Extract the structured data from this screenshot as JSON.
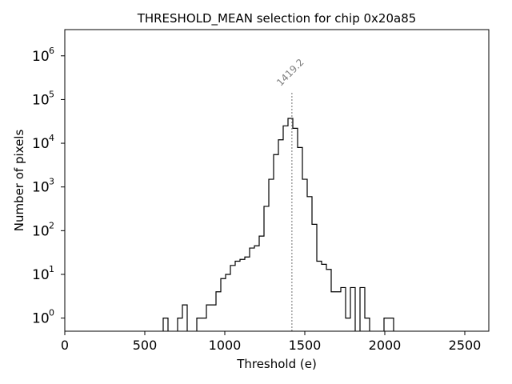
{
  "chart_data": {
    "type": "histogram",
    "title": "THRESHOLD_MEAN selection for chip 0x20a85",
    "xlabel": "Threshold (e)",
    "ylabel": "Number of pixels",
    "xlim": [
      0,
      2650
    ],
    "ylim_log10": [
      -0.3,
      6.6
    ],
    "yscale": "log",
    "x_ticks": [
      0,
      500,
      1000,
      1500,
      2000,
      2500
    ],
    "x_tick_labels": [
      "0",
      "500",
      "1000",
      "1500",
      "2000",
      "2500"
    ],
    "y_tick_exponents": [
      0,
      1,
      2,
      3,
      4,
      5,
      6
    ],
    "y_tick_base": "10",
    "bin_width": 30,
    "bins": [
      {
        "x0": 615,
        "count": 1
      },
      {
        "x0": 705,
        "count": 1
      },
      {
        "x0": 735,
        "count": 2
      },
      {
        "x0": 825,
        "count": 1
      },
      {
        "x0": 855,
        "count": 1
      },
      {
        "x0": 885,
        "count": 2
      },
      {
        "x0": 915,
        "count": 2
      },
      {
        "x0": 945,
        "count": 4
      },
      {
        "x0": 975,
        "count": 8
      },
      {
        "x0": 1005,
        "count": 10
      },
      {
        "x0": 1035,
        "count": 16
      },
      {
        "x0": 1065,
        "count": 20
      },
      {
        "x0": 1095,
        "count": 22
      },
      {
        "x0": 1125,
        "count": 25
      },
      {
        "x0": 1155,
        "count": 40
      },
      {
        "x0": 1185,
        "count": 45
      },
      {
        "x0": 1215,
        "count": 75
      },
      {
        "x0": 1245,
        "count": 360
      },
      {
        "x0": 1275,
        "count": 1500
      },
      {
        "x0": 1305,
        "count": 5500
      },
      {
        "x0": 1335,
        "count": 12000
      },
      {
        "x0": 1365,
        "count": 25000
      },
      {
        "x0": 1395,
        "count": 37000
      },
      {
        "x0": 1425,
        "count": 22000
      },
      {
        "x0": 1455,
        "count": 8000
      },
      {
        "x0": 1485,
        "count": 1500
      },
      {
        "x0": 1515,
        "count": 600
      },
      {
        "x0": 1545,
        "count": 140
      },
      {
        "x0": 1575,
        "count": 20
      },
      {
        "x0": 1605,
        "count": 17
      },
      {
        "x0": 1635,
        "count": 13
      },
      {
        "x0": 1665,
        "count": 4
      },
      {
        "x0": 1695,
        "count": 4
      },
      {
        "x0": 1725,
        "count": 5
      },
      {
        "x0": 1755,
        "count": 1
      },
      {
        "x0": 1785,
        "count": 5
      },
      {
        "x0": 1845,
        "count": 5
      },
      {
        "x0": 1875,
        "count": 1
      },
      {
        "x0": 1995,
        "count": 1
      },
      {
        "x0": 2025,
        "count": 1
      }
    ],
    "threshold_line": {
      "x": 1419.2,
      "label": "1419.2",
      "y_top_log10": 5.15,
      "style": "dotted",
      "color": "#808080"
    }
  }
}
